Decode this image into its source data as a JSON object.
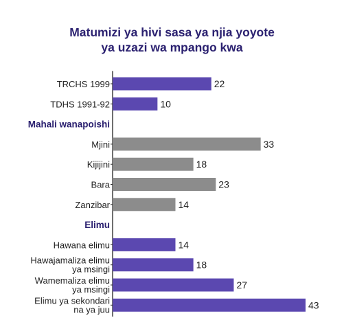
{
  "chart_data": {
    "type": "bar",
    "orientation": "horizontal",
    "title_lines": [
      "Matumizi ya hivi sasa ya njia yoyote",
      "ya uzazi wa mpango kwa"
    ],
    "xlim": [
      0,
      43
    ],
    "grid": false,
    "legend": "none",
    "colors": {
      "purple": "#5b48b0",
      "gray": "#8c8c8c",
      "title": "#2b2170",
      "group": "#2b2170",
      "axis": "#222222"
    },
    "rows": [
      {
        "kind": "bar",
        "label": [
          "TRCHS 1999"
        ],
        "value": 22,
        "color": "purple"
      },
      {
        "kind": "bar",
        "label": [
          "TDHS 1991-92"
        ],
        "value": 10,
        "color": "purple"
      },
      {
        "kind": "group",
        "label": "Mahali wanapoishi"
      },
      {
        "kind": "bar",
        "label": [
          "Mjini"
        ],
        "value": 33,
        "color": "gray"
      },
      {
        "kind": "bar",
        "label": [
          "Kijijini"
        ],
        "value": 18,
        "color": "gray"
      },
      {
        "kind": "bar",
        "label": [
          "Bara"
        ],
        "value": 23,
        "color": "gray"
      },
      {
        "kind": "bar",
        "label": [
          "Zanzibar"
        ],
        "value": 14,
        "color": "gray"
      },
      {
        "kind": "group",
        "label": "Elimu"
      },
      {
        "kind": "bar",
        "label": [
          "Hawana elimu"
        ],
        "value": 14,
        "color": "purple"
      },
      {
        "kind": "bar",
        "label": [
          "Hawajamaliza elimu",
          "ya msingi"
        ],
        "value": 18,
        "color": "purple"
      },
      {
        "kind": "bar",
        "label": [
          "Wamemaliza elimu",
          "ya msingi"
        ],
        "value": 27,
        "color": "purple"
      },
      {
        "kind": "bar",
        "label": [
          "Elimu ya sekondari",
          "na ya juu"
        ],
        "value": 43,
        "color": "purple"
      }
    ]
  }
}
